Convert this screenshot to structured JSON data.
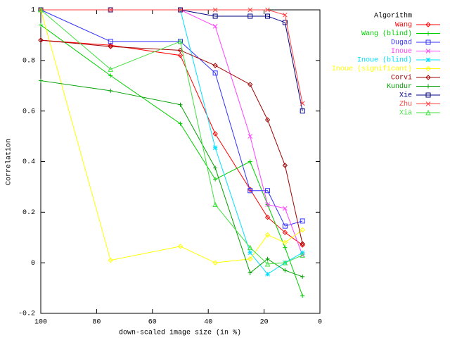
{
  "chart_data": {
    "type": "line",
    "x_label": "down-scaled image size (in %)",
    "y_label": "Correlation",
    "legend_title": "Algorithm",
    "legend": "top-right",
    "x": [
      100,
      75,
      50,
      37.5,
      25,
      18.75,
      12.5,
      6.25
    ],
    "xlim": [
      100,
      0
    ],
    "ylim": [
      -0.2,
      1
    ],
    "xticks": [
      100,
      80,
      60,
      40,
      20,
      0
    ],
    "yticks": [
      -0.2,
      0,
      0.2,
      0.4,
      0.6,
      0.8,
      1
    ],
    "series": [
      {
        "name": "Wang",
        "color": "#ff0000",
        "marker": "diamond",
        "values": [
          0.88,
          0.86,
          0.82,
          0.51,
          0.29,
          0.18,
          0.12,
          0.07
        ]
      },
      {
        "name": "Wang (blind)",
        "color": "#00d000",
        "marker": "plus",
        "values": [
          0.94,
          0.74,
          0.55,
          0.33,
          0.4,
          0.23,
          0.06,
          -0.13
        ]
      },
      {
        "name": "Dugad",
        "color": "#3030ff",
        "marker": "square",
        "values": [
          1,
          0.875,
          0.875,
          0.75,
          0.285,
          0.285,
          0.145,
          0.165
        ]
      },
      {
        "name": "Inoue",
        "color": "#ff40ff",
        "marker": "cross",
        "values": [
          null,
          null,
          1,
          0.935,
          0.5,
          0.23,
          0.215,
          0.03
        ]
      },
      {
        "name": "Inoue (blind)",
        "color": "#00e0ff",
        "marker": "star",
        "values": [
          null,
          null,
          1,
          0.455,
          0.04,
          -0.045,
          0.0,
          0.04
        ]
      },
      {
        "name": "Inoue (significant)",
        "color": "#ffff00",
        "marker": "diamond",
        "values": [
          1,
          0.01,
          0.065,
          0,
          0.015,
          0.11,
          0.08,
          0.13
        ]
      },
      {
        "name": "Corvi",
        "color": "#a00000",
        "marker": "diamond",
        "values": [
          0.88,
          0.855,
          0.84,
          0.78,
          0.705,
          0.565,
          0.385,
          0.075
        ]
      },
      {
        "name": "Kundur",
        "color": "#00a000",
        "marker": "plus",
        "values": [
          0.72,
          0.68,
          0.625,
          0.375,
          -0.04,
          0.015,
          -0.03,
          -0.055
        ]
      },
      {
        "name": "Xie",
        "color": "#000080",
        "marker": "square",
        "values": [
          1,
          1,
          1,
          0.975,
          0.975,
          0.975,
          0.95,
          0.6
        ]
      },
      {
        "name": "Zhu",
        "color": "#ff4040",
        "marker": "cross",
        "values": [
          1,
          1,
          1,
          1,
          1,
          1,
          0.98,
          0.63
        ]
      },
      {
        "name": "Xia",
        "color": "#40e040",
        "marker": "triangle",
        "values": [
          1,
          0.765,
          0.875,
          0.23,
          0.06,
          -0.005,
          0.0,
          0.03
        ]
      }
    ]
  }
}
